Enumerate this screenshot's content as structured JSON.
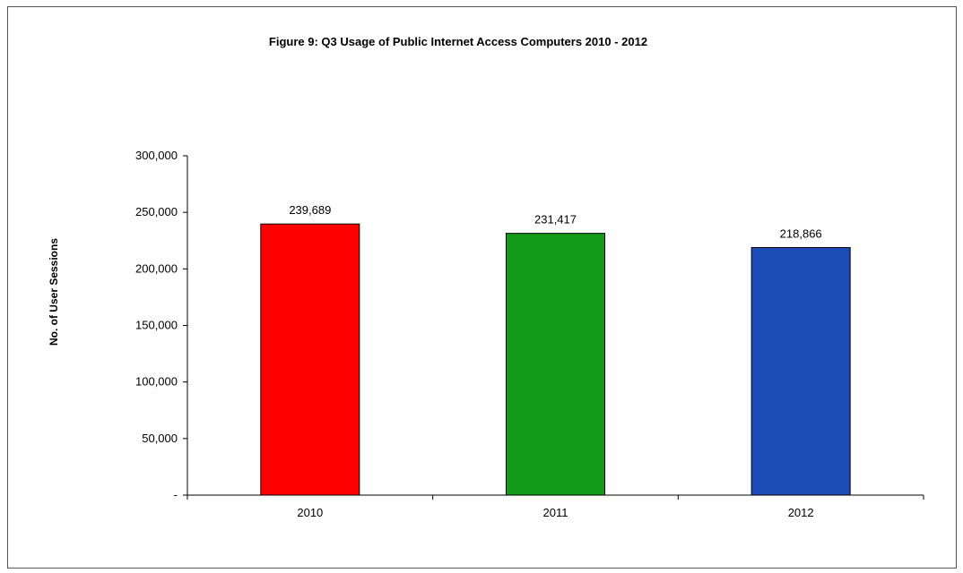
{
  "chart_data": {
    "type": "bar",
    "title": "Figure 9: Q3 Usage of Public Internet Access Computers 2010 - 2012",
    "ylabel": "No. of User Sessions",
    "xlabel": "",
    "categories": [
      "2010",
      "2011",
      "2012"
    ],
    "values": [
      239689,
      231417,
      218866
    ],
    "value_labels": [
      "239,689",
      "231,417",
      "218,866"
    ],
    "colors": [
      "#ff0000",
      "#129a18",
      "#1c4cb8"
    ],
    "ylim": [
      0,
      300000
    ],
    "yticks": [
      0,
      50000,
      100000,
      150000,
      200000,
      250000,
      300000
    ],
    "ytick_labels": [
      "-",
      "50,000",
      "100,000",
      "150,000",
      "200,000",
      "250,000",
      "300,000"
    ],
    "grid": false,
    "legend": "none"
  }
}
